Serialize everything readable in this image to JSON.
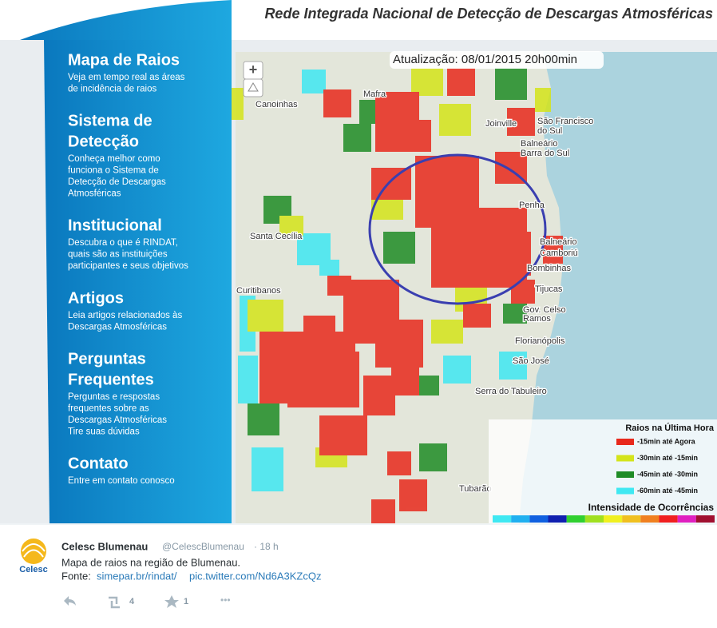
{
  "header": {
    "title": "Rede Integrada Nacional de Detecção de Descargas Atmosféricas"
  },
  "menu": [
    {
      "title": [
        "Mapa de Raios"
      ],
      "description": [
        "Veja em tempo real as áreas",
        "de incidência de raios"
      ]
    },
    {
      "title": [
        "Sistema de",
        "Detecção"
      ],
      "description": [
        "Conheça melhor como",
        "funciona o Sistema de",
        "Detecção de Descargas",
        "Atmosféricas"
      ]
    },
    {
      "title": [
        "Institucional"
      ],
      "description": [
        "Descubra o que é RINDAT,",
        "quais são as instituições",
        "participantes e seus objetivos"
      ]
    },
    {
      "title": [
        "Artigos"
      ],
      "description": [
        "Leia artigos relacionados às",
        "Descargas Atmosféricas"
      ]
    },
    {
      "title": [
        "Perguntas",
        "Frequentes"
      ],
      "description": [
        "Perguntas e respostas",
        "frequentes sobre as",
        "Descargas Atmosféricas",
        "Tire suas dúvidas"
      ]
    },
    {
      "title": [
        "Contato"
      ],
      "description": [
        "Entre em contato conosco"
      ]
    }
  ],
  "map": {
    "update": "Atualização: 08/01/2015 20h00min",
    "zoom_in": "+",
    "places": [
      "Canoinhas",
      "Mafra",
      "Joinville",
      "São Francisco",
      "do Sul",
      "Balneário",
      "Barra do Sul",
      "Santa Cecília",
      "Curitibanos",
      "Penha",
      "Balneário",
      "Camboriú",
      "Bombinhas",
      "Tijucas",
      "Gov. Celso",
      "Ramos",
      "Florianópolis",
      "São José",
      "Serra do Tabuleiro",
      "Tubarão"
    ],
    "legend": {
      "title": "Raios na Última Hora",
      "items": [
        {
          "label": "-15min até Agora",
          "color": "#e8291c"
        },
        {
          "label": "-30min até -15min",
          "color": "#d4e41a"
        },
        {
          "label": "-45min até -30min",
          "color": "#1f8c26"
        },
        {
          "label": "-60min até -45min",
          "color": "#3fe8f2"
        }
      ],
      "intensity": "Intensidade de Ocorrências",
      "intensity_colors": [
        "#3fe8f2",
        "#20b0f0",
        "#1060e0",
        "#1020b0",
        "#30d030",
        "#a0e020",
        "#f0f020",
        "#f0c020",
        "#f08020",
        "#f02020",
        "#e020c0",
        "#a01030"
      ]
    }
  },
  "tweet": {
    "name": "Celesc Blumenau",
    "handle": "@CelescBlumenau",
    "time": "· 18 h",
    "text": "Mapa de raios na região de Blumenau.",
    "source": "Fonte:",
    "link1": "simepar.br/rindat/",
    "link2": "pic.twitter.com/Nd6A3KZcQz",
    "retweets": 4,
    "favorites": 1,
    "more": "•••",
    "avatar_text": "Celesc"
  }
}
